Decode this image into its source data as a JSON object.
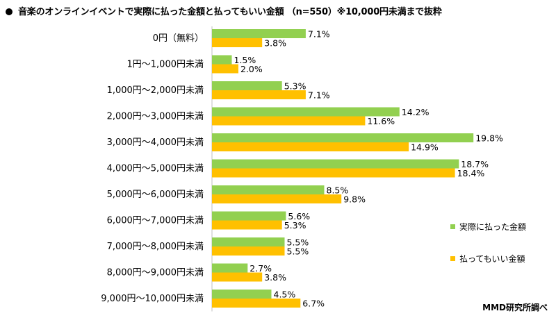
{
  "title": "音楽のオンラインイベントで実際に払った金額と払ってもいい金額 （n=550）※10,000円未満まで抜粋",
  "credit": "MMD研究所調べ",
  "colors": {
    "series1": "#92D050",
    "series2": "#FFC000"
  },
  "chart_data": {
    "type": "bar",
    "orientation": "horizontal",
    "title": "音楽のオンラインイベントで実際に払った金額と払ってもいい金額 （n=550）※10,000円未満まで抜粋",
    "unit": "%",
    "xlim": [
      0,
      25
    ],
    "categories": [
      "0円（無料）",
      "1円～1,000円未満",
      "1,000円～2,000円未満",
      "2,000円～3,000円未満",
      "3,000円～4,000円未満",
      "4,000円～5,000円未満",
      "5,000円～6,000円未満",
      "6,000円～7,000円未満",
      "7,000円～8,000円未満",
      "8,000円～9,000円未満",
      "9,000円～10,000円未満"
    ],
    "series": [
      {
        "name": "実際に払った金額",
        "values": [
          7.1,
          1.5,
          5.3,
          14.2,
          19.8,
          18.7,
          8.5,
          5.6,
          5.5,
          2.7,
          4.5
        ]
      },
      {
        "name": "払ってもいい金額",
        "values": [
          3.8,
          2.0,
          7.1,
          11.6,
          14.9,
          18.4,
          9.8,
          5.3,
          5.5,
          3.8,
          6.7
        ]
      }
    ],
    "legend_position": "right"
  }
}
